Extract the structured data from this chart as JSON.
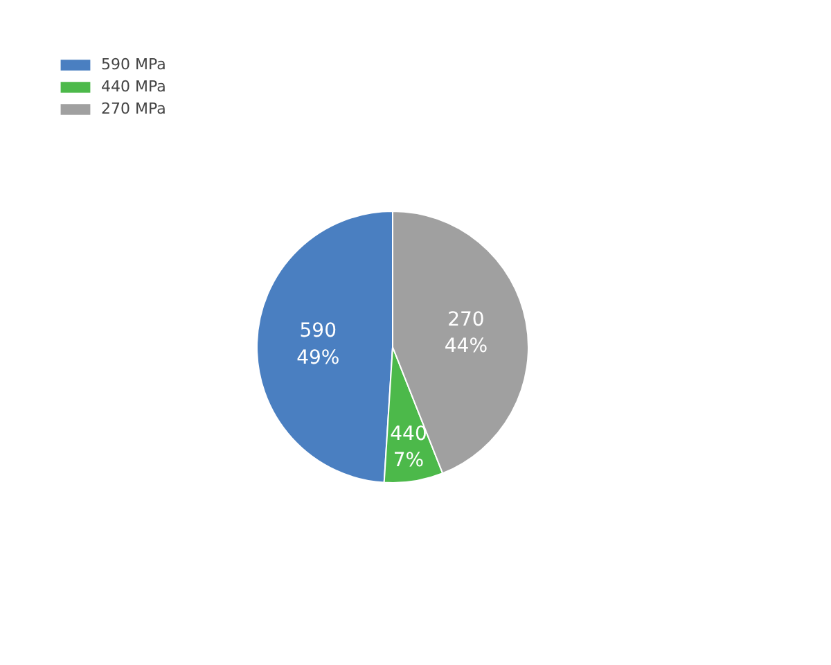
{
  "chart_data": {
    "type": "pie",
    "categories": [
      "590 MPa",
      "440 MPa",
      "270 MPa"
    ],
    "values": [
      49,
      7,
      44
    ],
    "colors": [
      "#4a7fc1",
      "#4cb94a",
      "#a0a0a0"
    ],
    "value_labels": [
      "590\n49%",
      "440\n7%",
      "270\n44%"
    ],
    "legend": "top left"
  }
}
